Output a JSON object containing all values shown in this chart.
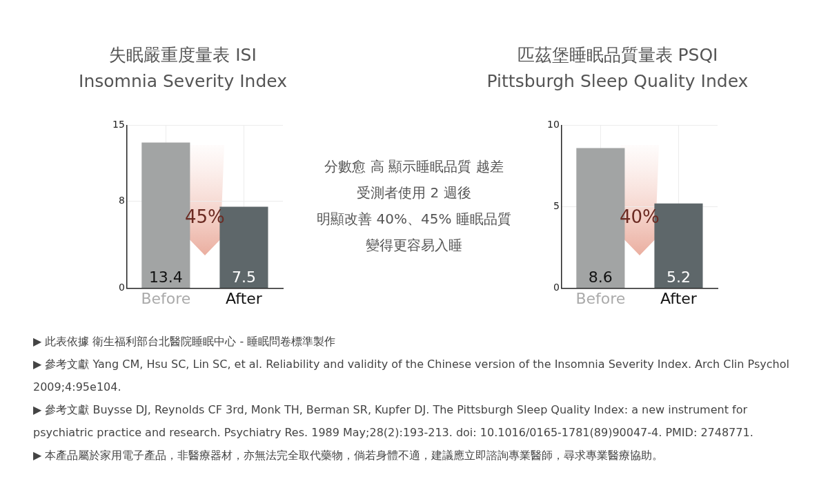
{
  "chart_data": [
    {
      "type": "bar",
      "title": "失眠嚴重度量表 ISI",
      "subtitle": "Insomnia Severity Index",
      "categories": [
        "Before",
        "After"
      ],
      "values": [
        13.4,
        7.5
      ],
      "colors": [
        "#a2a4a4",
        "#5e676a"
      ],
      "ylim": [
        0,
        15
      ],
      "yticks": [
        0,
        8,
        15
      ],
      "grid": true,
      "data_labels": true,
      "legend": false,
      "annotations": [
        "45%"
      ]
    },
    {
      "type": "other",
      "annotations": [
        "分數愈 高 顯示睡眠品質 越差",
        "受測者使用 2 週後",
        "明顯改善 40%、45% 睡眠品質",
        "變得更容易入睡"
      ]
    },
    {
      "type": "bar",
      "title": "匹茲堡睡眠品質量表 PSQI",
      "subtitle": "Pittsburgh Sleep Quality Index",
      "categories": [
        "Before",
        "After"
      ],
      "values": [
        8.6,
        5.2
      ],
      "colors": [
        "#a2a4a4",
        "#5e676a"
      ],
      "ylim": [
        0,
        10
      ],
      "yticks": [
        0,
        5,
        10
      ],
      "grid": true,
      "data_labels": true,
      "legend": false,
      "annotations": [
        "40%"
      ]
    },
    {
      "type": "other",
      "annotations": [
        "▶ 此表依據 衛生福利部台北醫院睡眠中心 - 睡眠問卷標準製作",
        "▶ 參考文獻 Yang CM, Hsu SC, Lin SC, et al. Reliability and validity of the Chinese version of the Insomnia Severity Index. Arch Clin Psychol 2009;4:95e104.",
        "▶ 參考文獻 Buysse DJ, Reynolds CF 3rd, Monk TH, Berman SR, Kupfer DJ. The Pittsburgh Sleep Quality Index: a new instrument for psychiatric practice and research. Psychiatry Res. 1989 May;28(2):193-213. doi: 10.1016/0165-1781(89)90047-4. PMID: 2748771.",
        "▶ 本產品屬於家用電子產品，非醫療器材，亦無法完全取代藥物，倘若身體不適，建議應立即諮詢專業醫師，尋求專業醫療協助。"
      ]
    }
  ]
}
